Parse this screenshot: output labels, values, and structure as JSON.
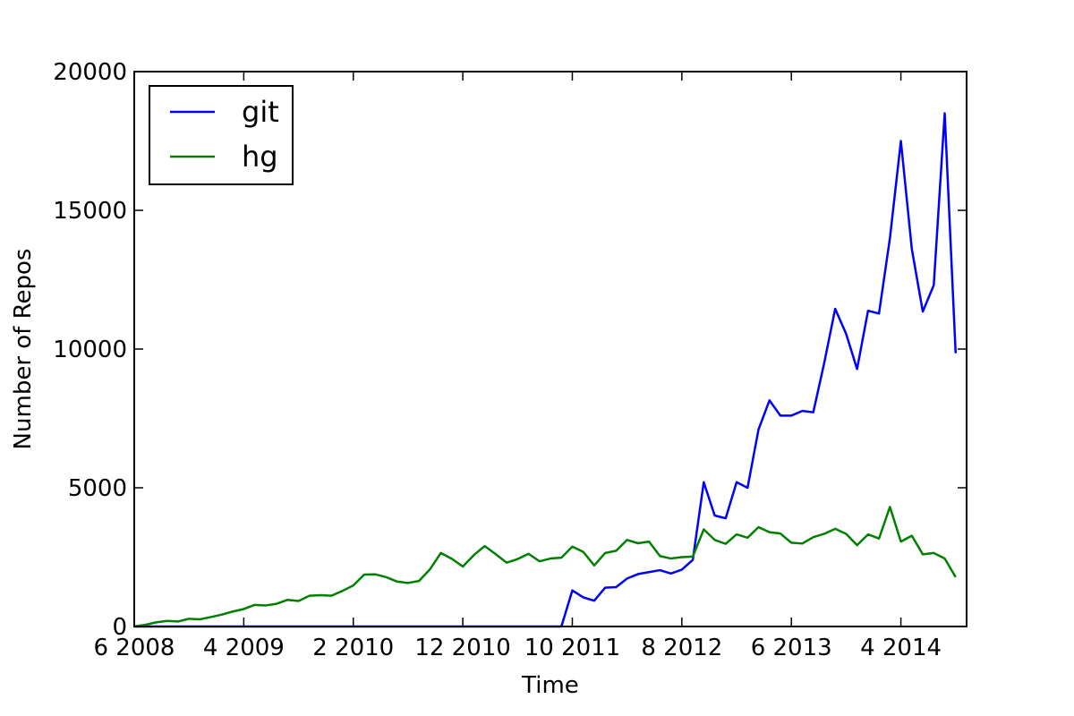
{
  "chart_data": {
    "type": "line",
    "title": "",
    "xlabel": "Time",
    "ylabel": "Number of Repos",
    "ylim": [
      0,
      20000
    ],
    "xlim": [
      0,
      76
    ],
    "yticks": [
      0,
      5000,
      10000,
      15000,
      20000
    ],
    "xticks": [
      {
        "pos": 0,
        "label": "6 2008"
      },
      {
        "pos": 10,
        "label": "4 2009"
      },
      {
        "pos": 20,
        "label": "2 2010"
      },
      {
        "pos": 30,
        "label": "12 2010"
      },
      {
        "pos": 40,
        "label": "10 2011"
      },
      {
        "pos": 50,
        "label": "8 2012"
      },
      {
        "pos": 60,
        "label": "6 2013"
      },
      {
        "pos": 70,
        "label": "4 2014"
      }
    ],
    "legend": "top-left",
    "grid": false,
    "series": [
      {
        "name": "git",
        "color": "#0000ff",
        "values": [
          0,
          0,
          0,
          0,
          0,
          0,
          0,
          0,
          0,
          0,
          0,
          0,
          0,
          0,
          0,
          0,
          0,
          0,
          0,
          0,
          0,
          0,
          0,
          0,
          0,
          0,
          0,
          0,
          0,
          0,
          0,
          0,
          0,
          0,
          0,
          0,
          0,
          0,
          0,
          0,
          1300,
          1050,
          930,
          1400,
          1420,
          1730,
          1890,
          1960,
          2030,
          1910,
          2050,
          2400,
          5200,
          4000,
          3900,
          5200,
          5000,
          7100,
          8150,
          7600,
          7600,
          7770,
          7720,
          9500,
          11450,
          10550,
          9280,
          11380,
          11280,
          14000,
          17500,
          13600,
          11350,
          12300,
          18500,
          9850
        ]
      },
      {
        "name": "hg",
        "color": "#008000",
        "values": [
          0,
          60,
          150,
          200,
          180,
          280,
          260,
          340,
          430,
          540,
          630,
          780,
          760,
          820,
          960,
          920,
          1110,
          1130,
          1110,
          1280,
          1480,
          1870,
          1880,
          1780,
          1620,
          1570,
          1640,
          2060,
          2650,
          2440,
          2160,
          2570,
          2900,
          2610,
          2300,
          2430,
          2620,
          2350,
          2450,
          2480,
          2880,
          2690,
          2200,
          2650,
          2730,
          3120,
          3000,
          3060,
          2540,
          2450,
          2500,
          2520,
          3500,
          3120,
          2980,
          3320,
          3200,
          3580,
          3400,
          3350,
          3020,
          2990,
          3220,
          3340,
          3520,
          3340,
          2930,
          3320,
          3170,
          4310,
          3060,
          3270,
          2600,
          2650,
          2450,
          1780
        ]
      }
    ]
  }
}
